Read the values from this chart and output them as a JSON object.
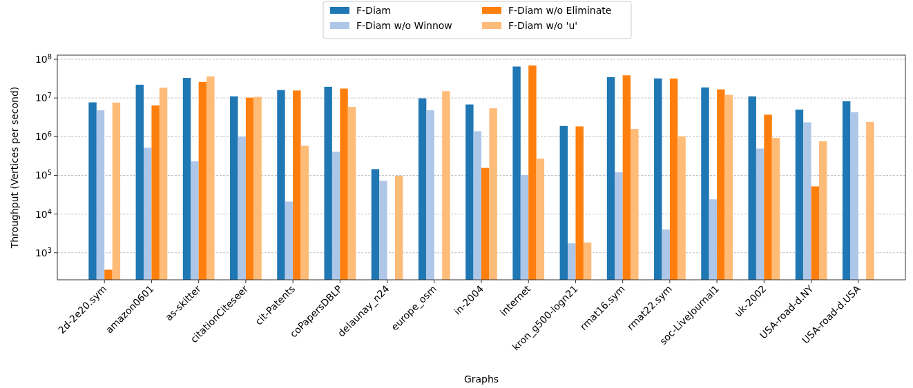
{
  "chart_data": {
    "type": "bar",
    "xlabel": "Graphs",
    "ylabel": "Throughput (Vertices per second)",
    "categories": [
      "2d-2e20.sym",
      "amazon0601",
      "as-skitter",
      "citationCiteseer",
      "cit-Patents",
      "coPapersDBLP",
      "delaunay_n24",
      "europe_osm",
      "in-2004",
      "internet",
      "kron_g500-logn21",
      "rmat16.sym",
      "rmat22.sym",
      "soc-LiveJournal1",
      "uk-2002",
      "USA-road-d.NY",
      "USA-road-d.USA"
    ],
    "series": [
      {
        "name": "F-Diam",
        "color": "#1f77b4",
        "values": [
          7700000,
          22000000,
          33000000,
          11000000,
          16000000,
          19500000,
          145000,
          9800000,
          6800000,
          65000000,
          1890000,
          34500000,
          32000000,
          18700000,
          11000000,
          5000000,
          8200000
        ]
      },
      {
        "name": "F-Diam w/o Winnow",
        "color": "#aec7e8",
        "values": [
          4800000,
          520000,
          230000,
          1000000,
          21000,
          410000,
          72000,
          4800000,
          1380000,
          102000,
          1750,
          120000,
          4000,
          24000,
          495000,
          2350000,
          4300000
        ]
      },
      {
        "name": "F-Diam w/o Eliminate",
        "color": "#ff7f0e",
        "values": [
          365,
          6400000,
          26000000,
          10200000,
          15600000,
          17500000,
          null,
          null,
          156000,
          69000000,
          1840000,
          38500000,
          31800000,
          16700000,
          3700000,
          52000,
          null
        ]
      },
      {
        "name": "F-Diam w/o 'u'",
        "color": "#ffbb78",
        "values": [
          7600000,
          18400000,
          36000000,
          10700000,
          580000,
          5900000,
          98000,
          15000000,
          5400000,
          270000,
          1850,
          1580000,
          1020000,
          12100000,
          930000,
          760000,
          2400000
        ]
      }
    ],
    "log": true,
    "ylim": [
      200,
      128000000
    ],
    "yticks": [
      {
        "value": 1000,
        "label": "10$^{3}$"
      },
      {
        "value": 10000,
        "label": "10$^{4}$"
      },
      {
        "value": 100000,
        "label": "10$^{5}$"
      },
      {
        "value": 1000000,
        "label": "10$^{6}$"
      },
      {
        "value": 10000000,
        "label": "10$^{7}$"
      },
      {
        "value": 100000000,
        "label": "10$^{8}$"
      }
    ],
    "grid": "y",
    "legend": "top"
  }
}
